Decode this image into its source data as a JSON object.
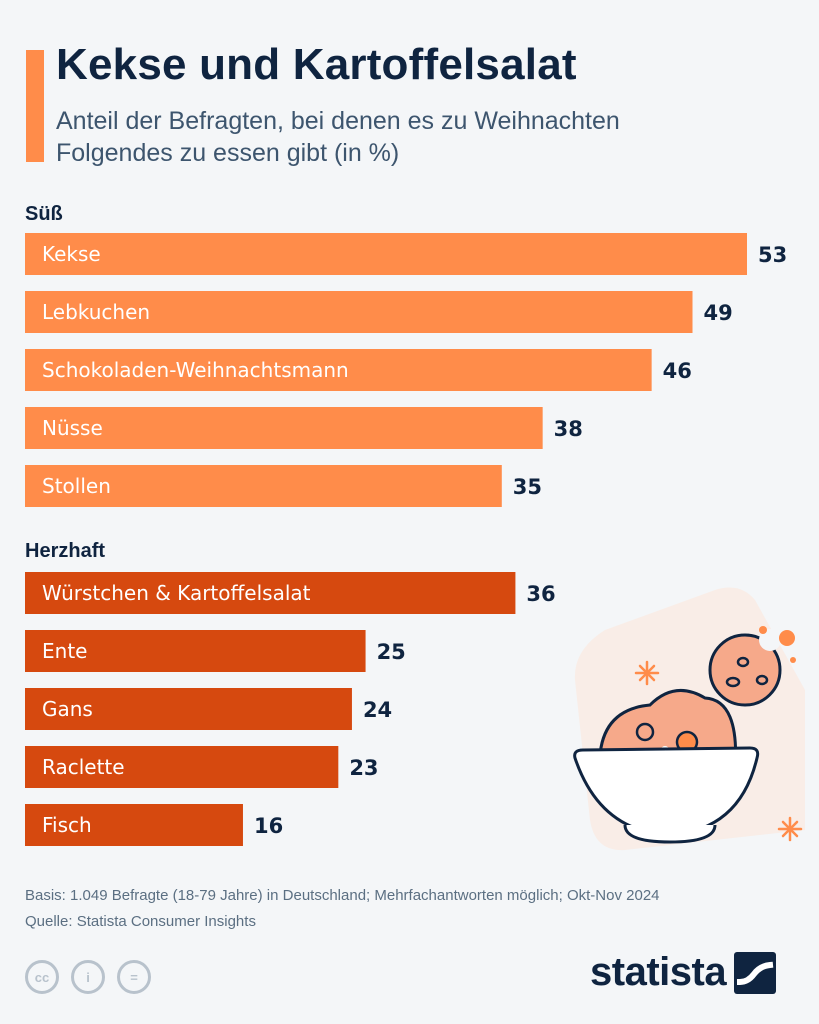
{
  "header": {
    "title": "Kekse und Kartoffelsalat",
    "subtitle": "Anteil der Befragten, bei denen es zu Weihnachten Folgendes zu essen gibt (in %)"
  },
  "chart_data": {
    "type": "bar",
    "orientation": "horizontal",
    "groups": [
      {
        "name": "Süß",
        "color": "#ff8c4a",
        "categories": [
          "Kekse",
          "Lebkuchen",
          "Schokoladen-Weihnachtsmann",
          "Nüsse",
          "Stollen"
        ],
        "values": [
          53,
          49,
          46,
          38,
          35
        ]
      },
      {
        "name": "Herzhaft",
        "color": "#d6490f",
        "categories": [
          "Würstchen & Kartoffelsalat",
          "Ente",
          "Gans",
          "Raclette",
          "Fisch"
        ],
        "values": [
          36,
          25,
          24,
          23,
          16
        ]
      }
    ],
    "xlim": [
      0,
      53
    ],
    "grid": false,
    "legend": "none"
  },
  "footer": {
    "basis": "Basis: 1.049 Befragte (18-79 Jahre) in Deutschland; Mehrfachantworten möglich; Okt-Nov 2024",
    "quelle": "Quelle: Statista Consumer Insights",
    "license_icons": [
      "cc",
      "i",
      "="
    ],
    "brand": "statista"
  },
  "illustration": {
    "icons": [
      "cookie-icon",
      "bowl-icon",
      "sparkle-icon"
    ]
  }
}
